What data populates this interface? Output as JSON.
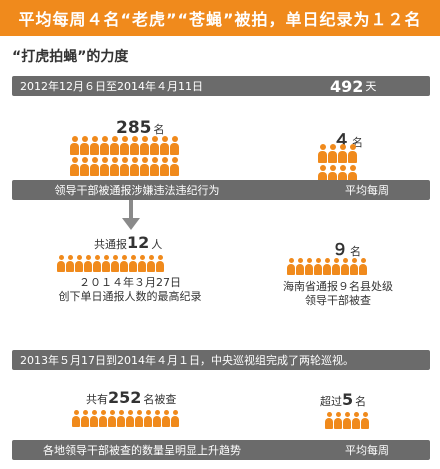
{
  "header": {
    "title": "平均每周４名“老虎”“苍蝇”被拍，单日纪录为１２名"
  },
  "section": {
    "subtitle": "“打虎拍蝇”的力度"
  },
  "period1": {
    "dates": "2012年12月６日至2014年４月11日",
    "days_value": "492",
    "days_unit": "天"
  },
  "block1": {
    "left_value": "285",
    "left_unit": "名",
    "left_caption": "领导干部被通报涉嫌违法违纪行为",
    "right_value": "４",
    "right_unit": "名",
    "right_caption": "平均每周"
  },
  "block2": {
    "left_prefix": "共通报",
    "left_value": "12",
    "left_unit": "人",
    "left_caption_line1": "２０１４年３月27日",
    "left_caption_line2": "创下单日通报人数的最高纪录",
    "right_value": "９",
    "right_unit": "名",
    "right_caption_line1": "海南省通报９名县处级",
    "right_caption_line2": "领导干部被查"
  },
  "period2": {
    "text": "2013年５月17日到2014年４月１日，中央巡视组完成了两轮巡视。"
  },
  "block3": {
    "left_prefix": "共有",
    "left_value": "252",
    "left_unit": "名被查",
    "left_caption": "各地领导干部被查的数量呈明显上升趋势",
    "right_prefix": "超过",
    "right_value": "5",
    "right_unit": "名",
    "right_caption": "平均每周"
  },
  "colors": {
    "accent": "#f08a1c",
    "bar_grey": "#6b6b6b"
  }
}
